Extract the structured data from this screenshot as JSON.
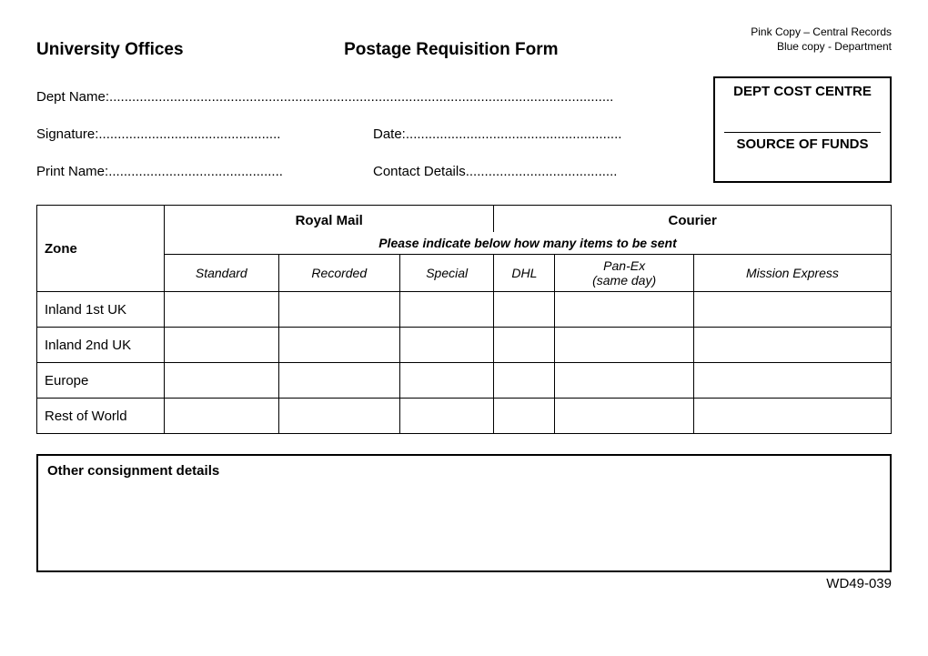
{
  "header": {
    "left": "University Offices",
    "center": "Postage Requisition Form",
    "copy_line1": "Pink Copy – Central Records",
    "copy_line2": "Blue copy - Department"
  },
  "fields": {
    "dept_name_label": "Dept Name:",
    "signature_label": "Signature:",
    "date_label": "Date:",
    "print_name_label": "Print Name:",
    "contact_label": "Contact Details"
  },
  "cost_box": {
    "line1": "DEPT COST CENTRE",
    "line2": "SOURCE OF FUNDS"
  },
  "table": {
    "zone_header": "Zone",
    "group_rm": "Royal Mail",
    "group_courier": "Courier",
    "instruction": "Please indicate below how many items to be sent",
    "cols_rm": [
      "Standard",
      "Recorded",
      "Special"
    ],
    "cols_courier": [
      "DHL",
      "Pan-Ex\n(same day)",
      "Mission Express"
    ],
    "zones": [
      "Inland 1st UK",
      "Inland 2nd UK",
      "Europe",
      "Rest of World"
    ],
    "values": [
      [
        "",
        "",
        "",
        "",
        "",
        ""
      ],
      [
        "",
        "",
        "",
        "",
        "",
        ""
      ],
      [
        "",
        "",
        "",
        "",
        "",
        ""
      ],
      [
        "",
        "",
        "",
        "",
        "",
        ""
      ]
    ]
  },
  "other": {
    "header": "Other consignment details",
    "content": ""
  },
  "footer": "WD49-039"
}
